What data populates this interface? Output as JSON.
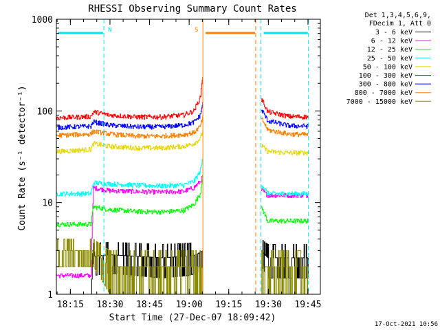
{
  "chart_data": {
    "type": "line",
    "title": "RHESSI Observing Summary Count Rates",
    "xlabel": "Start Time (27-Dec-07 18:09:42)",
    "ylabel": "Count Rate (s⁻¹ detector⁻¹)",
    "yscale": "log",
    "ylim": [
      1,
      1000
    ],
    "xlim_minutes": [
      0,
      100
    ],
    "x_ticks": [
      {
        "m": 5.3,
        "label": "18:15"
      },
      {
        "m": 20.3,
        "label": "18:30"
      },
      {
        "m": 35.3,
        "label": "18:45"
      },
      {
        "m": 50.3,
        "label": "19:00"
      },
      {
        "m": 65.3,
        "label": "19:15"
      },
      {
        "m": 80.3,
        "label": "19:30"
      },
      {
        "m": 95.3,
        "label": "19:45"
      }
    ],
    "y_ticks": [
      {
        "v": 1,
        "label": "1"
      },
      {
        "v": 10,
        "label": "10"
      },
      {
        "v": 100,
        "label": "100"
      },
      {
        "v": 1000,
        "label": "1000"
      }
    ],
    "legend_header": [
      "Det 1,3,4,5,6,9,",
      "FDecim 1, Att 0"
    ],
    "legend_position": "top-right-outside",
    "grid": false,
    "markers": [
      {
        "label": "N",
        "m": 18.0,
        "color": "#00e5ee",
        "bar_from": 0,
        "bar_to": 18.0
      },
      {
        "label": "S",
        "m": 55.5,
        "color": "#ff7f00",
        "bar_from": 56.0,
        "bar_to": 75.5
      },
      {
        "label": "",
        "m": 77.5,
        "color": "#00e5ee",
        "bar_from": 78.0,
        "bar_to": 95.5
      }
    ],
    "data_gap_minutes": [
      55.5,
      77.5
    ],
    "cyan_lines_minutes": [
      18.0,
      77.5,
      95.5
    ],
    "orange_lines_minutes": [
      55.5,
      75.5
    ],
    "timestamp": "17-Oct-2021 10:56",
    "series": [
      {
        "name": "3 - 6 keV",
        "color": "#000000",
        "x": [
          13,
          14,
          20,
          30,
          40,
          50,
          53,
          54.5,
          55.3,
          78,
          80,
          95.5
        ],
        "y": [
          1.0,
          2.6,
          2.7,
          2.6,
          2.5,
          2.6,
          2.7,
          2.9,
          3.0,
          2.9,
          2.5,
          2.5
        ]
      },
      {
        "name": "6 - 12 keV",
        "color": "#ff00ff",
        "x": [
          0,
          13,
          14,
          20,
          30,
          40,
          48,
          52,
          54.5,
          55.3,
          78,
          80,
          95.5
        ],
        "y": [
          1.6,
          1.6,
          14.5,
          13.5,
          13.2,
          13.0,
          13.2,
          14.5,
          17.0,
          19.0,
          13.5,
          12.0,
          12.0
        ]
      },
      {
        "name": "12 - 25 keV",
        "color": "#00ff00",
        "x": [
          0,
          13,
          14,
          20,
          30,
          40,
          48,
          52,
          54.5,
          55.3,
          78,
          80,
          95.5
        ],
        "y": [
          5.8,
          5.8,
          9.0,
          8.4,
          8.0,
          7.9,
          8.2,
          9.5,
          12.5,
          20.0,
          8.5,
          6.3,
          6.3
        ]
      },
      {
        "name": "25 - 50 keV",
        "color": "#00ffff",
        "x": [
          0,
          13,
          14,
          20,
          30,
          40,
          48,
          52,
          54.5,
          55.3,
          78,
          80,
          95.5
        ],
        "y": [
          12.5,
          12.5,
          16.5,
          16.0,
          15.5,
          15.2,
          15.5,
          17.0,
          22.0,
          30.0,
          15.5,
          12.5,
          12.5
        ]
      },
      {
        "name": "50 - 100 keV",
        "color": "#e5d600",
        "x": [
          0,
          13,
          14,
          20,
          30,
          40,
          48,
          52,
          54.5,
          55.3,
          78,
          80,
          88,
          95.5
        ],
        "y": [
          36.0,
          38.0,
          44.0,
          41.0,
          39.5,
          39.5,
          41.0,
          44.0,
          50.0,
          60.0,
          41.0,
          36.0,
          35.0,
          35.0
        ]
      },
      {
        "name": "100 - 300 keV",
        "color": "#ff0000",
        "x": [
          0,
          13,
          14,
          20,
          30,
          40,
          48,
          52,
          54.5,
          55.3,
          78,
          80,
          88,
          95.5
        ],
        "y": [
          84.0,
          87.0,
          98.0,
          90.0,
          86.0,
          86.0,
          90.0,
          100.0,
          140.0,
          240.0,
          130.0,
          98.0,
          87.0,
          86.0
        ]
      },
      {
        "name": "300 - 800 keV",
        "color": "#0000ff",
        "x": [
          0,
          13,
          14,
          20,
          30,
          40,
          48,
          52,
          54.5,
          55.3,
          78,
          80,
          88,
          95.5
        ],
        "y": [
          66.0,
          68.0,
          76.0,
          70.0,
          67.0,
          67.0,
          70.0,
          75.0,
          90.0,
          120.0,
          100.0,
          78.0,
          69.0,
          68.0
        ]
      },
      {
        "name": "800 - 7000 keV",
        "color": "#ff7f00",
        "x": [
          0,
          13,
          14,
          20,
          30,
          40,
          48,
          52,
          54.5,
          55.3,
          78,
          80,
          88,
          95.5
        ],
        "y": [
          54.0,
          56.0,
          60.0,
          56.0,
          53.0,
          53.0,
          55.0,
          58.0,
          68.0,
          85.0,
          80.0,
          62.0,
          56.0,
          55.0
        ]
      },
      {
        "name": "7000 - 15000 keV",
        "color": "#8b8b00",
        "x": [
          0,
          13,
          14,
          20,
          30,
          40,
          50,
          55.3,
          78,
          80,
          95.5
        ],
        "y": [
          3.0,
          3.0,
          3.0,
          2.0,
          2.0,
          2.0,
          2.0,
          2.0,
          2.0,
          2.0,
          2.0
        ]
      }
    ]
  }
}
